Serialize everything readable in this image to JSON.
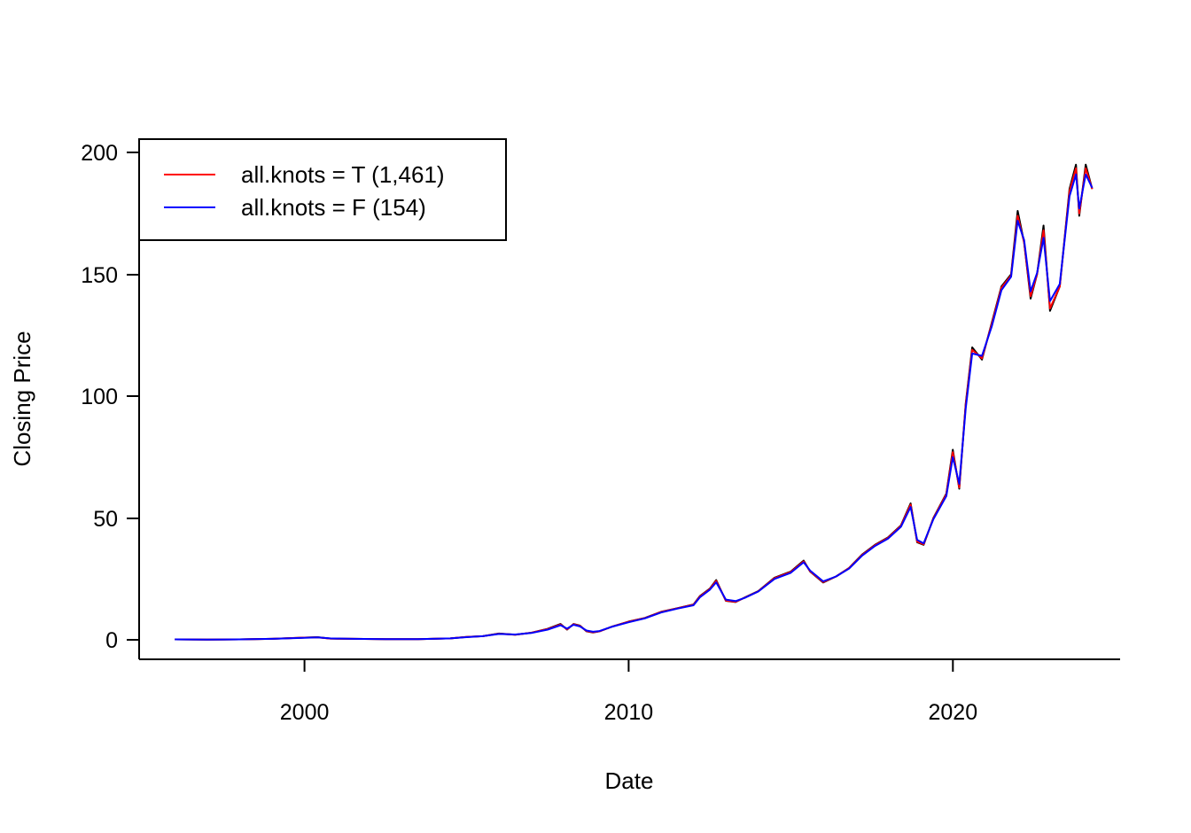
{
  "chart_data": {
    "type": "line",
    "title": "",
    "xlabel": "Date",
    "ylabel": "Closing Price",
    "xlim": [
      1995,
      2025.2
    ],
    "ylim": [
      -8,
      205
    ],
    "x_ticks": [
      2000,
      2010,
      2020
    ],
    "y_ticks": [
      0,
      50,
      100,
      150,
      200
    ],
    "x_tick_labels": [
      "2000",
      "2010",
      "2020"
    ],
    "y_tick_labels": [
      "0",
      "50",
      "100",
      "150",
      "200"
    ],
    "grid": false,
    "legend": {
      "position": "top-left",
      "entries": [
        {
          "label": "all.knots = T (1,461)",
          "color": "#ff0000"
        },
        {
          "label": "all.knots = F (154)",
          "color": "#0000ff"
        }
      ]
    },
    "series": [
      {
        "color": "#000000",
        "x": [
          1996.0,
          1997.0,
          1998.0,
          1999.0,
          2000.0,
          2000.4,
          2000.8,
          2001.5,
          2002.5,
          2003.5,
          2004.5,
          2005.0,
          2005.5,
          2006.0,
          2006.5,
          2007.0,
          2007.5,
          2007.9,
          2008.1,
          2008.3,
          2008.5,
          2008.7,
          2008.9,
          2009.1,
          2009.5,
          2010.0,
          2010.5,
          2011.0,
          2011.5,
          2012.0,
          2012.2,
          2012.5,
          2012.7,
          2013.0,
          2013.3,
          2013.6,
          2014.0,
          2014.5,
          2015.0,
          2015.4,
          2015.6,
          2016.0,
          2016.4,
          2016.8,
          2017.2,
          2017.6,
          2018.0,
          2018.4,
          2018.7,
          2018.9,
          2019.1,
          2019.4,
          2019.8,
          2020.0,
          2020.2,
          2020.4,
          2020.6,
          2020.9,
          2021.2,
          2021.5,
          2021.8,
          2022.0,
          2022.2,
          2022.4,
          2022.6,
          2022.8,
          2023.0,
          2023.3,
          2023.6,
          2023.8,
          2023.9,
          2024.1,
          2024.3
        ],
        "values": [
          0.2,
          0.1,
          0.2,
          0.4,
          0.9,
          1.1,
          0.5,
          0.4,
          0.3,
          0.3,
          0.6,
          1.2,
          1.5,
          2.6,
          2.1,
          2.9,
          4.5,
          6.5,
          4.2,
          6.5,
          5.8,
          3.5,
          3.0,
          3.5,
          5.5,
          7.5,
          9.0,
          11.5,
          13.0,
          14.5,
          18.0,
          21.0,
          24.5,
          16.0,
          15.5,
          17.5,
          20.0,
          25.5,
          28.0,
          32.5,
          28.0,
          23.5,
          26.0,
          29.5,
          35.0,
          39.0,
          42.0,
          47.0,
          56.0,
          40.0,
          39.0,
          50.0,
          60.0,
          78.0,
          62.0,
          97.0,
          120.0,
          115.0,
          130.0,
          145.0,
          150.0,
          176.0,
          163.0,
          140.0,
          150.0,
          170.0,
          135.0,
          145.0,
          185.0,
          195.0,
          174.0,
          195.0,
          185.0
        ]
      },
      {
        "name": "all.knots = T (1,461)",
        "color": "#ff0000",
        "x": [
          1996.0,
          1997.0,
          1998.0,
          1999.0,
          2000.0,
          2000.4,
          2000.8,
          2001.5,
          2002.5,
          2003.5,
          2004.5,
          2005.0,
          2005.5,
          2006.0,
          2006.5,
          2007.0,
          2007.5,
          2007.9,
          2008.1,
          2008.3,
          2008.5,
          2008.7,
          2008.9,
          2009.1,
          2009.5,
          2010.0,
          2010.5,
          2011.0,
          2011.5,
          2012.0,
          2012.2,
          2012.5,
          2012.7,
          2013.0,
          2013.3,
          2013.6,
          2014.0,
          2014.5,
          2015.0,
          2015.4,
          2015.6,
          2016.0,
          2016.4,
          2016.8,
          2017.2,
          2017.6,
          2018.0,
          2018.4,
          2018.7,
          2018.9,
          2019.1,
          2019.4,
          2019.8,
          2020.0,
          2020.2,
          2020.4,
          2020.6,
          2020.9,
          2021.2,
          2021.5,
          2021.8,
          2022.0,
          2022.2,
          2022.4,
          2022.6,
          2022.8,
          2023.0,
          2023.3,
          2023.6,
          2023.8,
          2023.9,
          2024.1,
          2024.3
        ],
        "values": [
          0.2,
          0.1,
          0.2,
          0.4,
          0.9,
          1.0,
          0.5,
          0.4,
          0.3,
          0.3,
          0.6,
          1.2,
          1.5,
          2.5,
          2.1,
          2.9,
          4.4,
          6.3,
          4.3,
          6.4,
          5.7,
          3.6,
          3.1,
          3.5,
          5.5,
          7.4,
          8.9,
          11.4,
          12.9,
          14.4,
          17.8,
          20.8,
          24.2,
          16.1,
          15.6,
          17.4,
          19.9,
          25.3,
          27.8,
          32.2,
          28.1,
          23.7,
          26.0,
          29.4,
          34.8,
          38.8,
          41.8,
          46.8,
          55.5,
          40.3,
          39.2,
          49.8,
          59.7,
          77.0,
          62.5,
          96.5,
          119.0,
          115.5,
          129.5,
          144.5,
          149.5,
          174.0,
          163.0,
          141.0,
          150.0,
          168.0,
          136.0,
          145.0,
          184.0,
          193.5,
          175.0,
          193.5,
          185.0
        ]
      },
      {
        "name": "all.knots = F (154)",
        "color": "#0000ff",
        "x": [
          1996.0,
          1997.0,
          1998.0,
          1999.0,
          2000.0,
          2000.4,
          2000.8,
          2001.5,
          2002.5,
          2003.5,
          2004.5,
          2005.0,
          2005.5,
          2006.0,
          2006.5,
          2007.0,
          2007.5,
          2007.9,
          2008.1,
          2008.3,
          2008.5,
          2008.7,
          2008.9,
          2009.1,
          2009.5,
          2010.0,
          2010.5,
          2011.0,
          2011.5,
          2012.0,
          2012.2,
          2012.5,
          2012.7,
          2013.0,
          2013.3,
          2013.6,
          2014.0,
          2014.5,
          2015.0,
          2015.4,
          2015.6,
          2016.0,
          2016.4,
          2016.8,
          2017.2,
          2017.6,
          2018.0,
          2018.4,
          2018.7,
          2018.9,
          2019.1,
          2019.4,
          2019.8,
          2020.0,
          2020.2,
          2020.4,
          2020.6,
          2020.9,
          2021.2,
          2021.5,
          2021.8,
          2022.0,
          2022.2,
          2022.4,
          2022.6,
          2022.8,
          2023.0,
          2023.3,
          2023.6,
          2023.8,
          2023.9,
          2024.1,
          2024.3
        ],
        "values": [
          0.2,
          0.1,
          0.2,
          0.4,
          0.8,
          1.0,
          0.6,
          0.4,
          0.3,
          0.3,
          0.6,
          1.1,
          1.5,
          2.4,
          2.2,
          2.8,
          4.2,
          6.0,
          4.6,
          6.2,
          5.5,
          3.8,
          3.3,
          3.6,
          5.4,
          7.2,
          8.8,
          11.2,
          12.8,
          14.2,
          17.5,
          20.5,
          23.6,
          16.5,
          15.9,
          17.3,
          19.8,
          25.0,
          27.5,
          31.8,
          28.4,
          24.0,
          26.0,
          29.2,
          34.5,
          38.5,
          41.5,
          46.4,
          54.5,
          41.0,
          39.6,
          49.5,
          59.0,
          75.0,
          64.0,
          95.0,
          117.5,
          116.5,
          128.5,
          143.5,
          149.0,
          172.0,
          164.0,
          143.0,
          150.5,
          165.0,
          139.0,
          146.0,
          182.0,
          191.0,
          177.0,
          191.0,
          185.5
        ]
      }
    ]
  }
}
